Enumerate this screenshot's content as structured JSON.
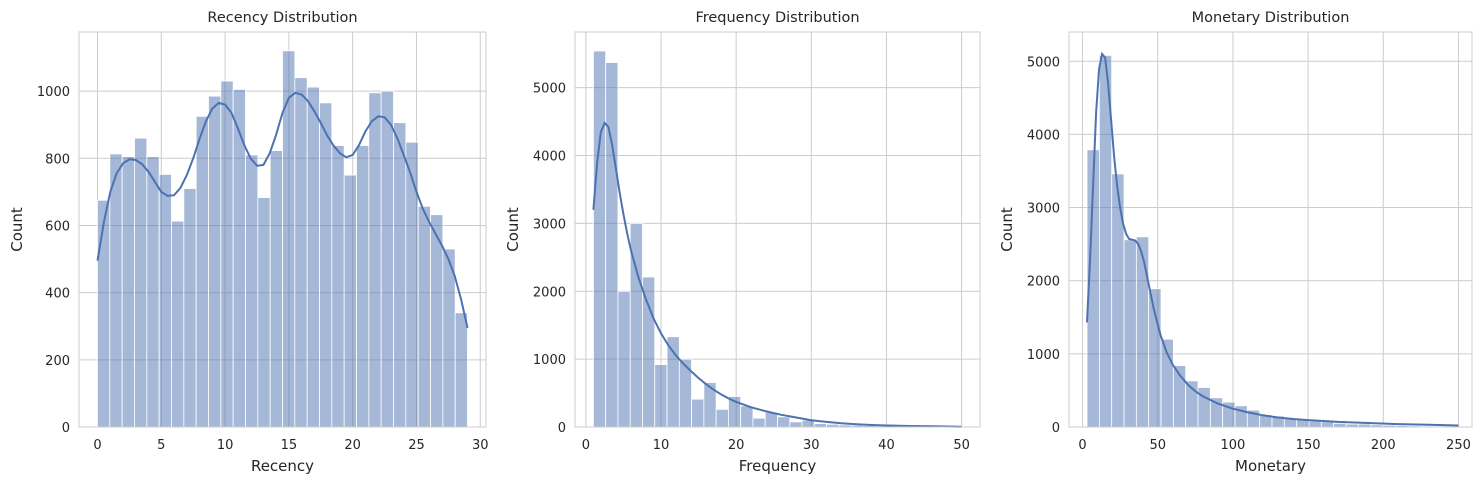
{
  "chart_data": [
    {
      "type": "bar",
      "title": "Recency Distribution",
      "xlabel": "Recency",
      "ylabel": "Count",
      "xlim": [
        -1.45,
        30.45
      ],
      "ylim": [
        0,
        1176
      ],
      "xticks": [
        0,
        5,
        10,
        15,
        20,
        25,
        30
      ],
      "yticks": [
        0,
        200,
        400,
        600,
        800,
        1000
      ],
      "grid": true,
      "bin_start": 0,
      "bin_width": 0.9667,
      "values": [
        675,
        813,
        805,
        860,
        805,
        752,
        613,
        710,
        925,
        985,
        1030,
        1005,
        810,
        683,
        823,
        1120,
        1040,
        1012,
        965,
        838,
        750,
        838,
        995,
        1000,
        906,
        848,
        657,
        632,
        530,
        340
      ],
      "kde": {
        "x": [
          0,
          0.5,
          1,
          1.5,
          2,
          2.5,
          3,
          3.5,
          4,
          4.5,
          5,
          5.5,
          6,
          6.5,
          7,
          7.5,
          8,
          8.5,
          9,
          9.5,
          10,
          10.5,
          11,
          11.5,
          12,
          12.5,
          13,
          13.5,
          14,
          14.5,
          15,
          15.5,
          16,
          16.5,
          17,
          17.5,
          18,
          18.5,
          19,
          19.5,
          20,
          20.5,
          21,
          21.5,
          22,
          22.5,
          23,
          23.5,
          24,
          24.5,
          25,
          25.5,
          26,
          26.5,
          27,
          27.5,
          28,
          28.5,
          29
        ],
        "y": [
          495,
          610,
          700,
          755,
          785,
          797,
          795,
          782,
          760,
          730,
          700,
          688,
          690,
          712,
          750,
          800,
          858,
          910,
          948,
          965,
          960,
          935,
          890,
          840,
          800,
          778,
          780,
          815,
          870,
          935,
          980,
          995,
          990,
          970,
          940,
          905,
          868,
          838,
          815,
          803,
          810,
          840,
          880,
          910,
          925,
          922,
          900,
          860,
          810,
          758,
          700,
          650,
          610,
          575,
          540,
          500,
          450,
          380,
          295
        ]
      }
    },
    {
      "type": "bar",
      "title": "Frequency Distribution",
      "xlabel": "Frequency",
      "ylabel": "Count",
      "xlim": [
        -1.45,
        52.45
      ],
      "ylim": [
        0,
        5820
      ],
      "xticks": [
        0,
        10,
        20,
        30,
        40,
        50
      ],
      "yticks": [
        0,
        1000,
        2000,
        3000,
        4000,
        5000
      ],
      "grid": true,
      "bin_start": 1,
      "bin_width": 1.6333,
      "values": [
        5540,
        5370,
        2000,
        3000,
        2210,
        920,
        1330,
        1000,
        410,
        655,
        260,
        450,
        310,
        130,
        215,
        150,
        75,
        100,
        50,
        40,
        30,
        25,
        20,
        15,
        10,
        8,
        6,
        5,
        4,
        3
      ],
      "kde": {
        "x": [
          1,
          1.5,
          2,
          2.5,
          3,
          3.5,
          4,
          4.5,
          5,
          5.5,
          6,
          7,
          8,
          9,
          10,
          11,
          12,
          13,
          14,
          15,
          16,
          17,
          18,
          19,
          20,
          22,
          24,
          26,
          28,
          30,
          32,
          34,
          36,
          38,
          40,
          43,
          46,
          50
        ],
        "y": [
          3200,
          3900,
          4350,
          4480,
          4420,
          4150,
          3800,
          3450,
          3130,
          2850,
          2600,
          2200,
          1880,
          1600,
          1380,
          1200,
          1050,
          930,
          820,
          720,
          630,
          550,
          480,
          420,
          370,
          290,
          230,
          180,
          140,
          100,
          75,
          55,
          40,
          30,
          22,
          15,
          10,
          5
        ]
      }
    },
    {
      "type": "bar",
      "title": "Monetary Distribution",
      "xlabel": "Monetary",
      "ylabel": "Count",
      "xlim": [
        -9,
        259
      ],
      "ylim": [
        0,
        5400
      ],
      "xticks": [
        0,
        50,
        100,
        150,
        200,
        250
      ],
      "yticks": [
        0,
        1000,
        2000,
        3000,
        4000,
        5000
      ],
      "grid": true,
      "bin_start": 3,
      "bin_width": 8.2,
      "values": [
        3790,
        5080,
        3460,
        2560,
        2600,
        1890,
        1200,
        840,
        630,
        540,
        400,
        340,
        290,
        230,
        170,
        150,
        120,
        100,
        80,
        70,
        50,
        40,
        40,
        30,
        25,
        20,
        15,
        10,
        10,
        5
      ],
      "kde": {
        "x": [
          3,
          5,
          7,
          9,
          11,
          13,
          15,
          17,
          19,
          21,
          23,
          25,
          27,
          29,
          31,
          33,
          35,
          37,
          39,
          41,
          43,
          45,
          47,
          49,
          52,
          56,
          60,
          65,
          70,
          75,
          80,
          90,
          100,
          110,
          120,
          130,
          140,
          150,
          170,
          190,
          210,
          230,
          250
        ],
        "y": [
          1430,
          2300,
          3300,
          4300,
          4900,
          5100,
          5050,
          4700,
          4200,
          3700,
          3300,
          3000,
          2780,
          2640,
          2570,
          2560,
          2550,
          2500,
          2400,
          2250,
          2050,
          1850,
          1650,
          1480,
          1250,
          1020,
          850,
          700,
          580,
          490,
          420,
          320,
          250,
          200,
          160,
          130,
          110,
          95,
          70,
          55,
          40,
          30,
          20
        ]
      }
    }
  ]
}
